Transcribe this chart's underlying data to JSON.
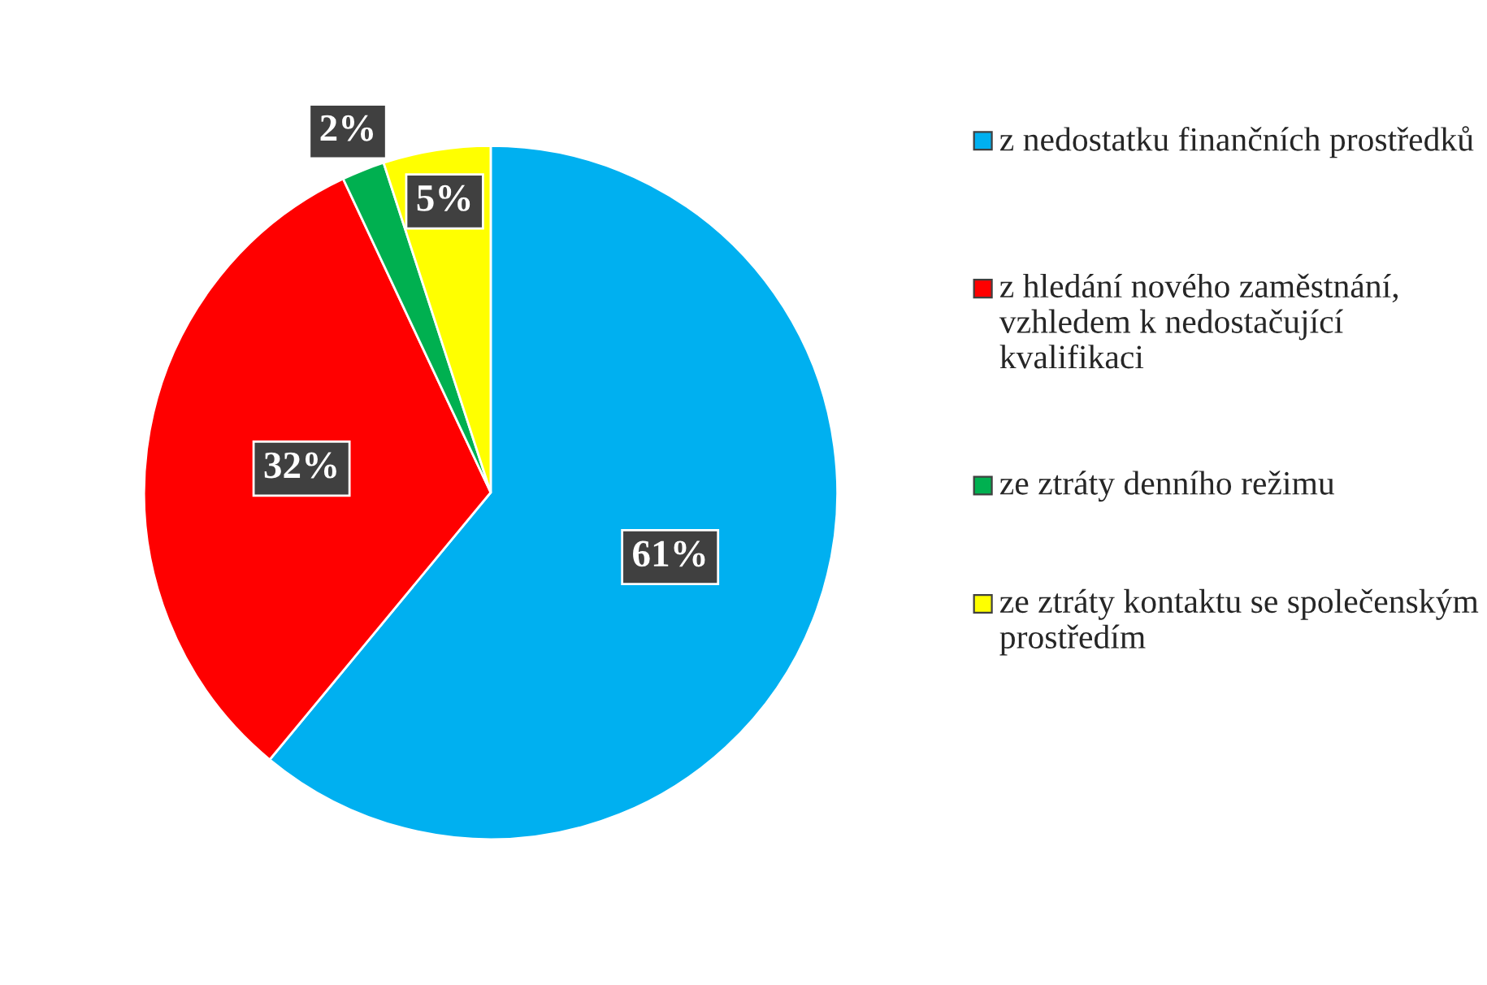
{
  "chart_data": {
    "type": "pie",
    "categories": [
      "z nedostatku finančních prostředků",
      "z hledání nového zaměstnání, vzhledem k nedostačující kvalifikaci",
      "ze ztráty denního režimu",
      "ze ztráty kontaktu se společenským prostředím"
    ],
    "values": [
      61,
      32,
      2,
      5
    ],
    "colors": [
      "#00b0f0",
      "#ff0000",
      "#00b050",
      "#ffff00"
    ],
    "value_labels": [
      "61%",
      "32%",
      "2%",
      "5%"
    ],
    "legend": "right"
  }
}
